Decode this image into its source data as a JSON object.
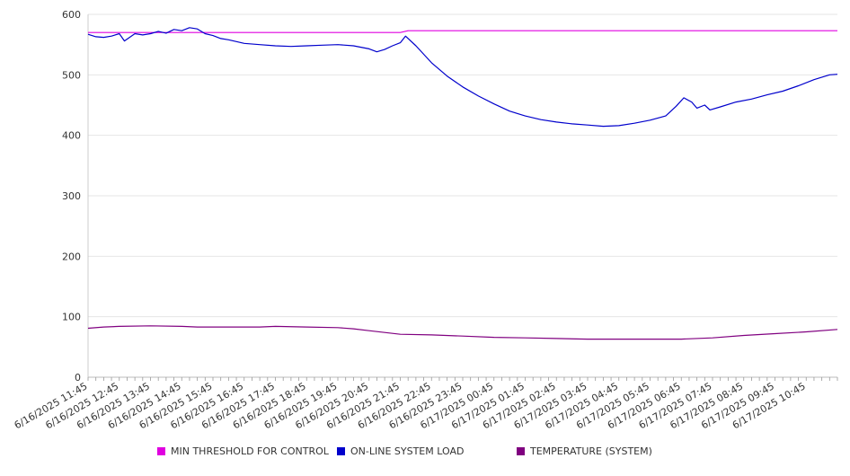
{
  "chart_data": {
    "type": "line",
    "title": "",
    "xlabel": "",
    "ylabel": "",
    "ylim": [
      0,
      600
    ],
    "yticks": [
      0,
      100,
      200,
      300,
      400,
      500,
      600
    ],
    "grid": true,
    "legend_position": "bottom",
    "x_tick_labels": [
      "6/16/2025 11:45",
      "6/16/2025 12:45",
      "6/16/2025 13:45",
      "6/16/2025 14:45",
      "6/16/2025 15:45",
      "6/16/2025 16:45",
      "6/16/2025 17:45",
      "6/16/2025 18:45",
      "6/16/2025 19:45",
      "6/16/2025 20:45",
      "6/16/2025 21:45",
      "6/16/2025 22:45",
      "6/16/2025 23:45",
      "6/17/2025 00:45",
      "6/17/2025 01:45",
      "6/17/2025 02:45",
      "6/17/2025 03:45",
      "6/17/2025 04:45",
      "6/17/2025 05:45",
      "6/17/2025 06:45",
      "6/17/2025 07:45",
      "6/17/2025 08:45",
      "6/17/2025 09:45",
      "6/17/2025 10:45"
    ],
    "series": [
      {
        "name": "MIN THRESHOLD FOR CONTROL",
        "color": "#e000e0",
        "points": [
          [
            "6/16/2025 11:45",
            570
          ],
          [
            "6/16/2025 21:45",
            570
          ],
          [
            "6/16/2025 22:00",
            573
          ],
          [
            "6/17/2025 11:45",
            573
          ]
        ]
      },
      {
        "name": "ON-LINE SYSTEM LOAD",
        "color": "#0000cc",
        "points": [
          [
            "6/16/2025 11:45",
            567
          ],
          [
            "6/16/2025 12:00",
            563
          ],
          [
            "6/16/2025 12:15",
            562
          ],
          [
            "6/16/2025 12:30",
            564
          ],
          [
            "6/16/2025 12:45",
            568
          ],
          [
            "6/16/2025 12:55",
            556
          ],
          [
            "6/16/2025 13:15",
            568
          ],
          [
            "6/16/2025 13:30",
            566
          ],
          [
            "6/16/2025 13:45",
            568
          ],
          [
            "6/16/2025 14:00",
            572
          ],
          [
            "6/16/2025 14:15",
            569
          ],
          [
            "6/16/2025 14:30",
            575
          ],
          [
            "6/16/2025 14:45",
            573
          ],
          [
            "6/16/2025 15:00",
            578
          ],
          [
            "6/16/2025 15:15",
            576
          ],
          [
            "6/16/2025 15:30",
            568
          ],
          [
            "6/16/2025 15:45",
            565
          ],
          [
            "6/16/2025 16:00",
            560
          ],
          [
            "6/16/2025 16:15",
            558
          ],
          [
            "6/16/2025 16:45",
            552
          ],
          [
            "6/16/2025 17:15",
            550
          ],
          [
            "6/16/2025 17:45",
            548
          ],
          [
            "6/16/2025 18:15",
            547
          ],
          [
            "6/16/2025 18:45",
            548
          ],
          [
            "6/16/2025 19:15",
            549
          ],
          [
            "6/16/2025 19:45",
            550
          ],
          [
            "6/16/2025 20:15",
            548
          ],
          [
            "6/16/2025 20:45",
            543
          ],
          [
            "6/16/2025 21:00",
            538
          ],
          [
            "6/16/2025 21:15",
            542
          ],
          [
            "6/16/2025 21:30",
            548
          ],
          [
            "6/16/2025 21:45",
            553
          ],
          [
            "6/16/2025 21:55",
            564
          ],
          [
            "6/16/2025 22:15",
            548
          ],
          [
            "6/16/2025 22:45",
            520
          ],
          [
            "6/16/2025 23:15",
            498
          ],
          [
            "6/16/2025 23:45",
            480
          ],
          [
            "6/17/2025 00:15",
            465
          ],
          [
            "6/17/2025 00:45",
            452
          ],
          [
            "6/17/2025 01:15",
            440
          ],
          [
            "6/17/2025 01:45",
            432
          ],
          [
            "6/17/2025 02:15",
            426
          ],
          [
            "6/17/2025 02:45",
            422
          ],
          [
            "6/17/2025 03:15",
            419
          ],
          [
            "6/17/2025 03:45",
            417
          ],
          [
            "6/17/2025 04:15",
            415
          ],
          [
            "6/17/2025 04:45",
            416
          ],
          [
            "6/17/2025 05:15",
            420
          ],
          [
            "6/17/2025 05:45",
            425
          ],
          [
            "6/17/2025 06:15",
            432
          ],
          [
            "6/17/2025 06:35",
            448
          ],
          [
            "6/17/2025 06:50",
            462
          ],
          [
            "6/17/2025 07:05",
            455
          ],
          [
            "6/17/2025 07:15",
            445
          ],
          [
            "6/17/2025 07:30",
            450
          ],
          [
            "6/17/2025 07:40",
            442
          ],
          [
            "6/17/2025 08:00",
            447
          ],
          [
            "6/17/2025 08:30",
            455
          ],
          [
            "6/17/2025 09:00",
            460
          ],
          [
            "6/17/2025 09:30",
            467
          ],
          [
            "6/17/2025 10:00",
            473
          ],
          [
            "6/17/2025 10:30",
            482
          ],
          [
            "6/17/2025 11:00",
            492
          ],
          [
            "6/17/2025 11:30",
            500
          ],
          [
            "6/17/2025 11:45",
            501
          ]
        ]
      },
      {
        "name": "TEMPERATURE (SYSTEM)",
        "color": "#800080",
        "points": [
          [
            "6/16/2025 11:45",
            81
          ],
          [
            "6/16/2025 12:15",
            83
          ],
          [
            "6/16/2025 12:45",
            84
          ],
          [
            "6/16/2025 13:45",
            85
          ],
          [
            "6/16/2025 14:45",
            84
          ],
          [
            "6/16/2025 15:15",
            83
          ],
          [
            "6/16/2025 15:45",
            83
          ],
          [
            "6/16/2025 17:15",
            83
          ],
          [
            "6/16/2025 17:45",
            84
          ],
          [
            "6/16/2025 18:45",
            83
          ],
          [
            "6/16/2025 19:45",
            82
          ],
          [
            "6/16/2025 20:15",
            80
          ],
          [
            "6/16/2025 20:45",
            77
          ],
          [
            "6/16/2025 21:15",
            74
          ],
          [
            "6/16/2025 21:45",
            71
          ],
          [
            "6/16/2025 22:45",
            70
          ],
          [
            "6/16/2025 23:45",
            68
          ],
          [
            "6/17/2025 00:45",
            66
          ],
          [
            "6/17/2025 01:45",
            65
          ],
          [
            "6/17/2025 02:45",
            64
          ],
          [
            "6/17/2025 03:45",
            63
          ],
          [
            "6/17/2025 04:45",
            63
          ],
          [
            "6/17/2025 05:45",
            63
          ],
          [
            "6/17/2025 06:45",
            63
          ],
          [
            "6/17/2025 07:45",
            65
          ],
          [
            "6/17/2025 08:45",
            69
          ],
          [
            "6/17/2025 09:45",
            72
          ],
          [
            "6/17/2025 10:45",
            75
          ],
          [
            "6/17/2025 11:45",
            79
          ]
        ]
      }
    ]
  },
  "legend": {
    "items": [
      {
        "label": "MIN THRESHOLD FOR CONTROL",
        "color": "#e000e0"
      },
      {
        "label": "ON-LINE SYSTEM LOAD",
        "color": "#0000cc"
      },
      {
        "label": "TEMPERATURE (SYSTEM)",
        "color": "#800080"
      }
    ]
  }
}
